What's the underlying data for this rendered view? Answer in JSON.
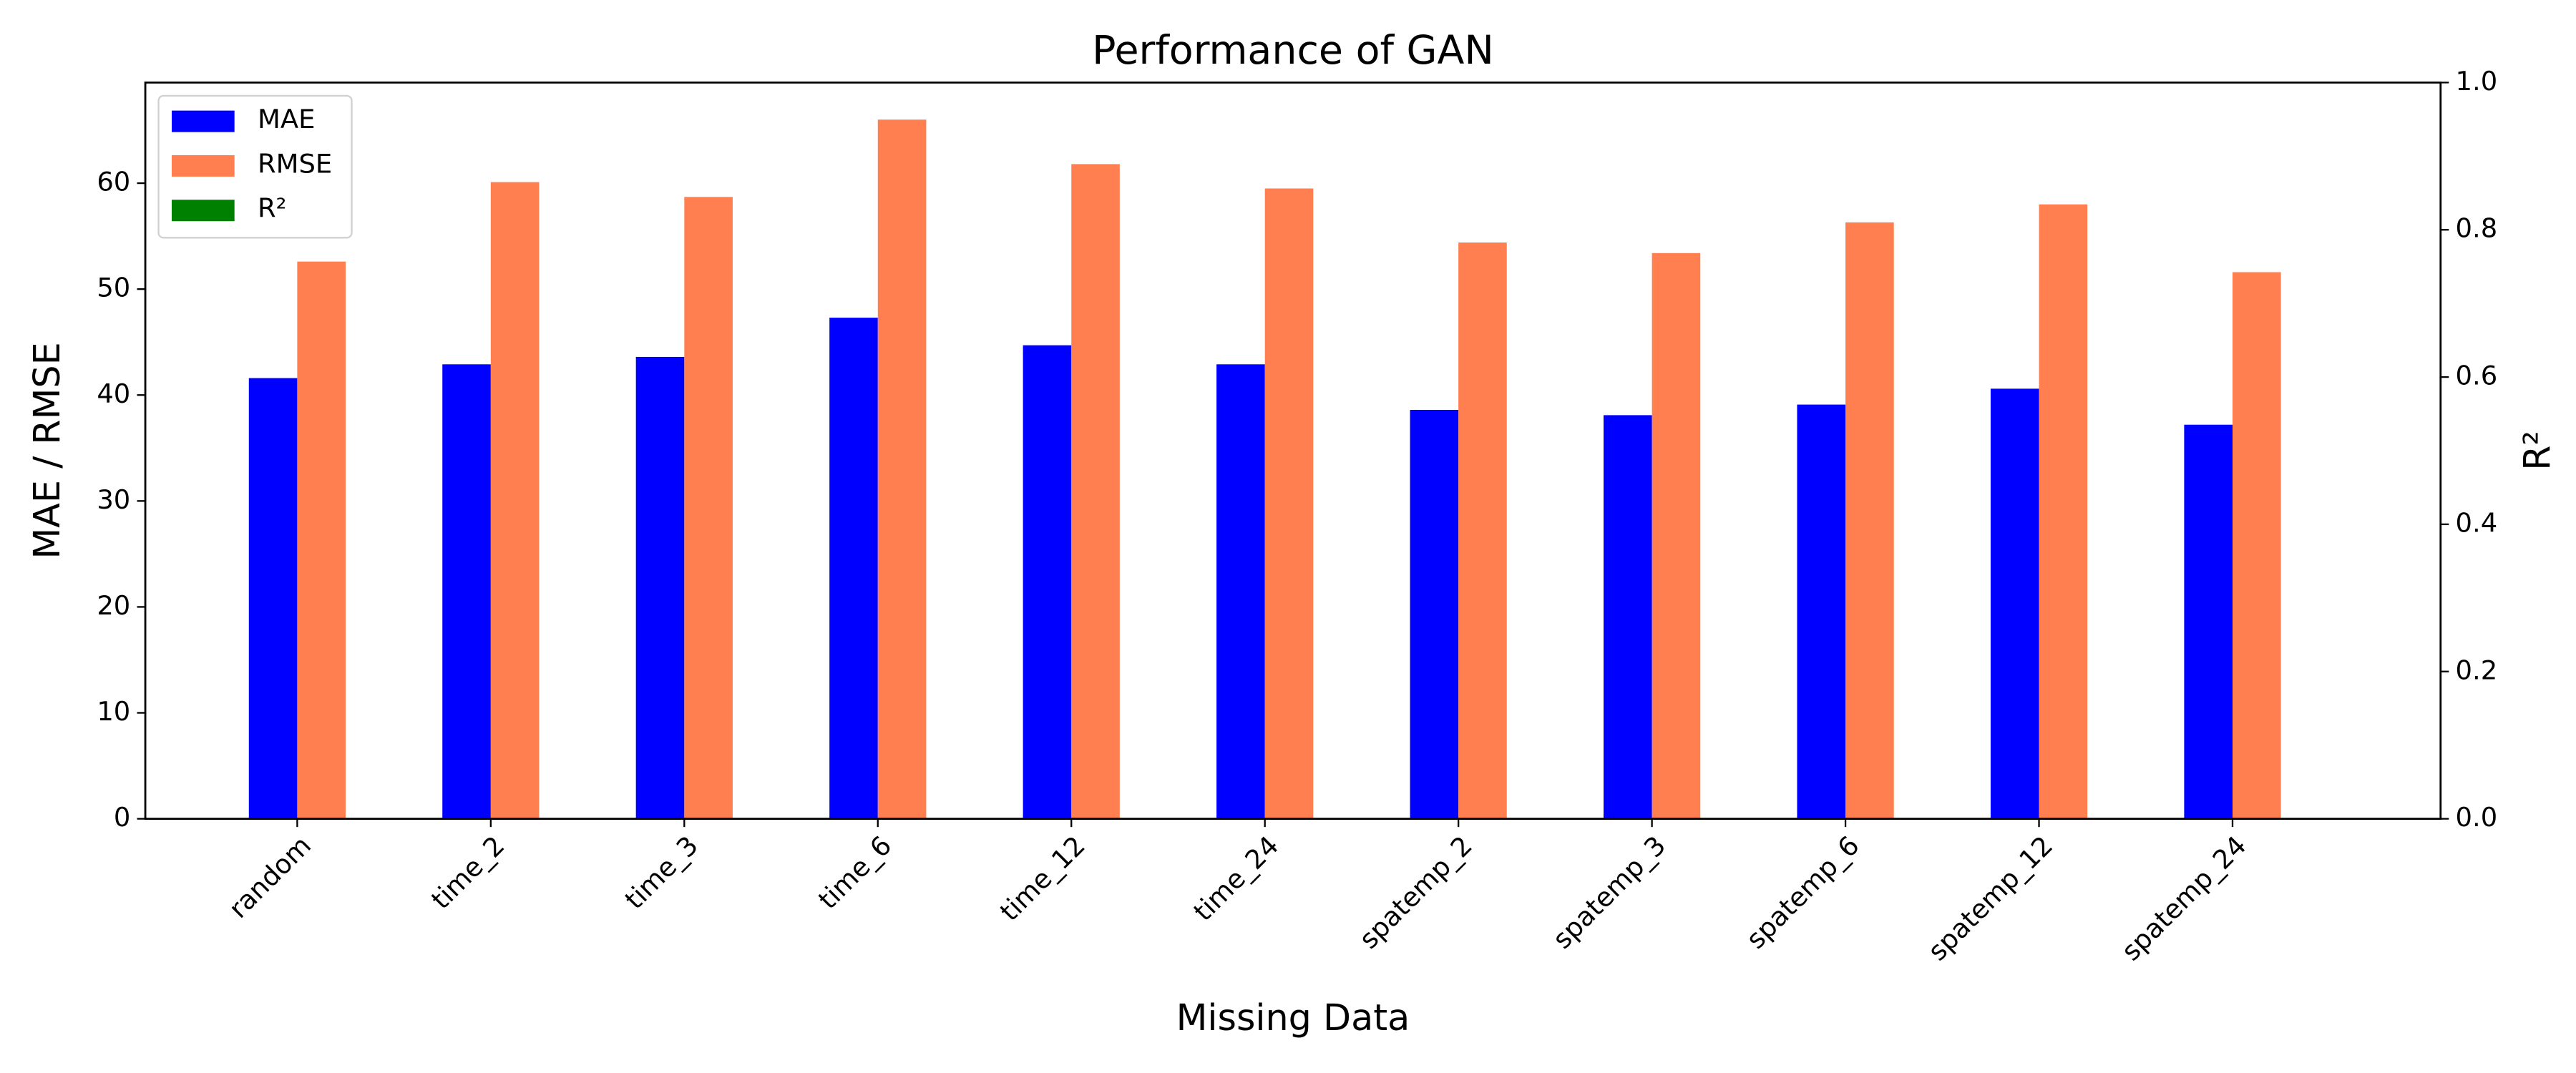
{
  "chart_data": {
    "type": "bar",
    "title": "Performance of GAN",
    "xlabel": "Missing Data",
    "ylabel": "MAE / RMSE",
    "y2label": "R²",
    "categories": [
      "random",
      "time_2",
      "time_3",
      "time_6",
      "time_12",
      "time_24",
      "spatemp_2",
      "spatemp_3",
      "spatemp_6",
      "spatemp_12",
      "spatemp_24"
    ],
    "series": [
      {
        "name": "MAE",
        "color": "#0000ff",
        "values": [
          41.6,
          42.9,
          43.6,
          47.3,
          44.7,
          42.9,
          38.6,
          38.1,
          39.1,
          40.6,
          37.2
        ]
      },
      {
        "name": "RMSE",
        "color": "#ff7f50",
        "values": [
          52.6,
          60.1,
          58.7,
          66.0,
          61.8,
          59.5,
          54.4,
          53.4,
          56.3,
          58.0,
          51.6
        ]
      },
      {
        "name": "R²",
        "color": "#008000",
        "axis": "y2",
        "values": [
          null,
          null,
          null,
          null,
          null,
          null,
          null,
          null,
          null,
          null,
          null
        ]
      }
    ],
    "ylim": [
      0,
      69.5
    ],
    "yticks": [
      0,
      10,
      20,
      30,
      40,
      50,
      60
    ],
    "y2lim": [
      0,
      1
    ],
    "y2ticks": [
      {
        "value": 0,
        "label": "0.0"
      },
      {
        "value": 0.2,
        "label": "0.2"
      },
      {
        "value": 0.4,
        "label": "0.4"
      },
      {
        "value": 0.6,
        "label": "0.6"
      },
      {
        "value": 0.8,
        "label": "0.8"
      },
      {
        "value": 1,
        "label": "1.0"
      }
    ],
    "legend": "upper left"
  }
}
